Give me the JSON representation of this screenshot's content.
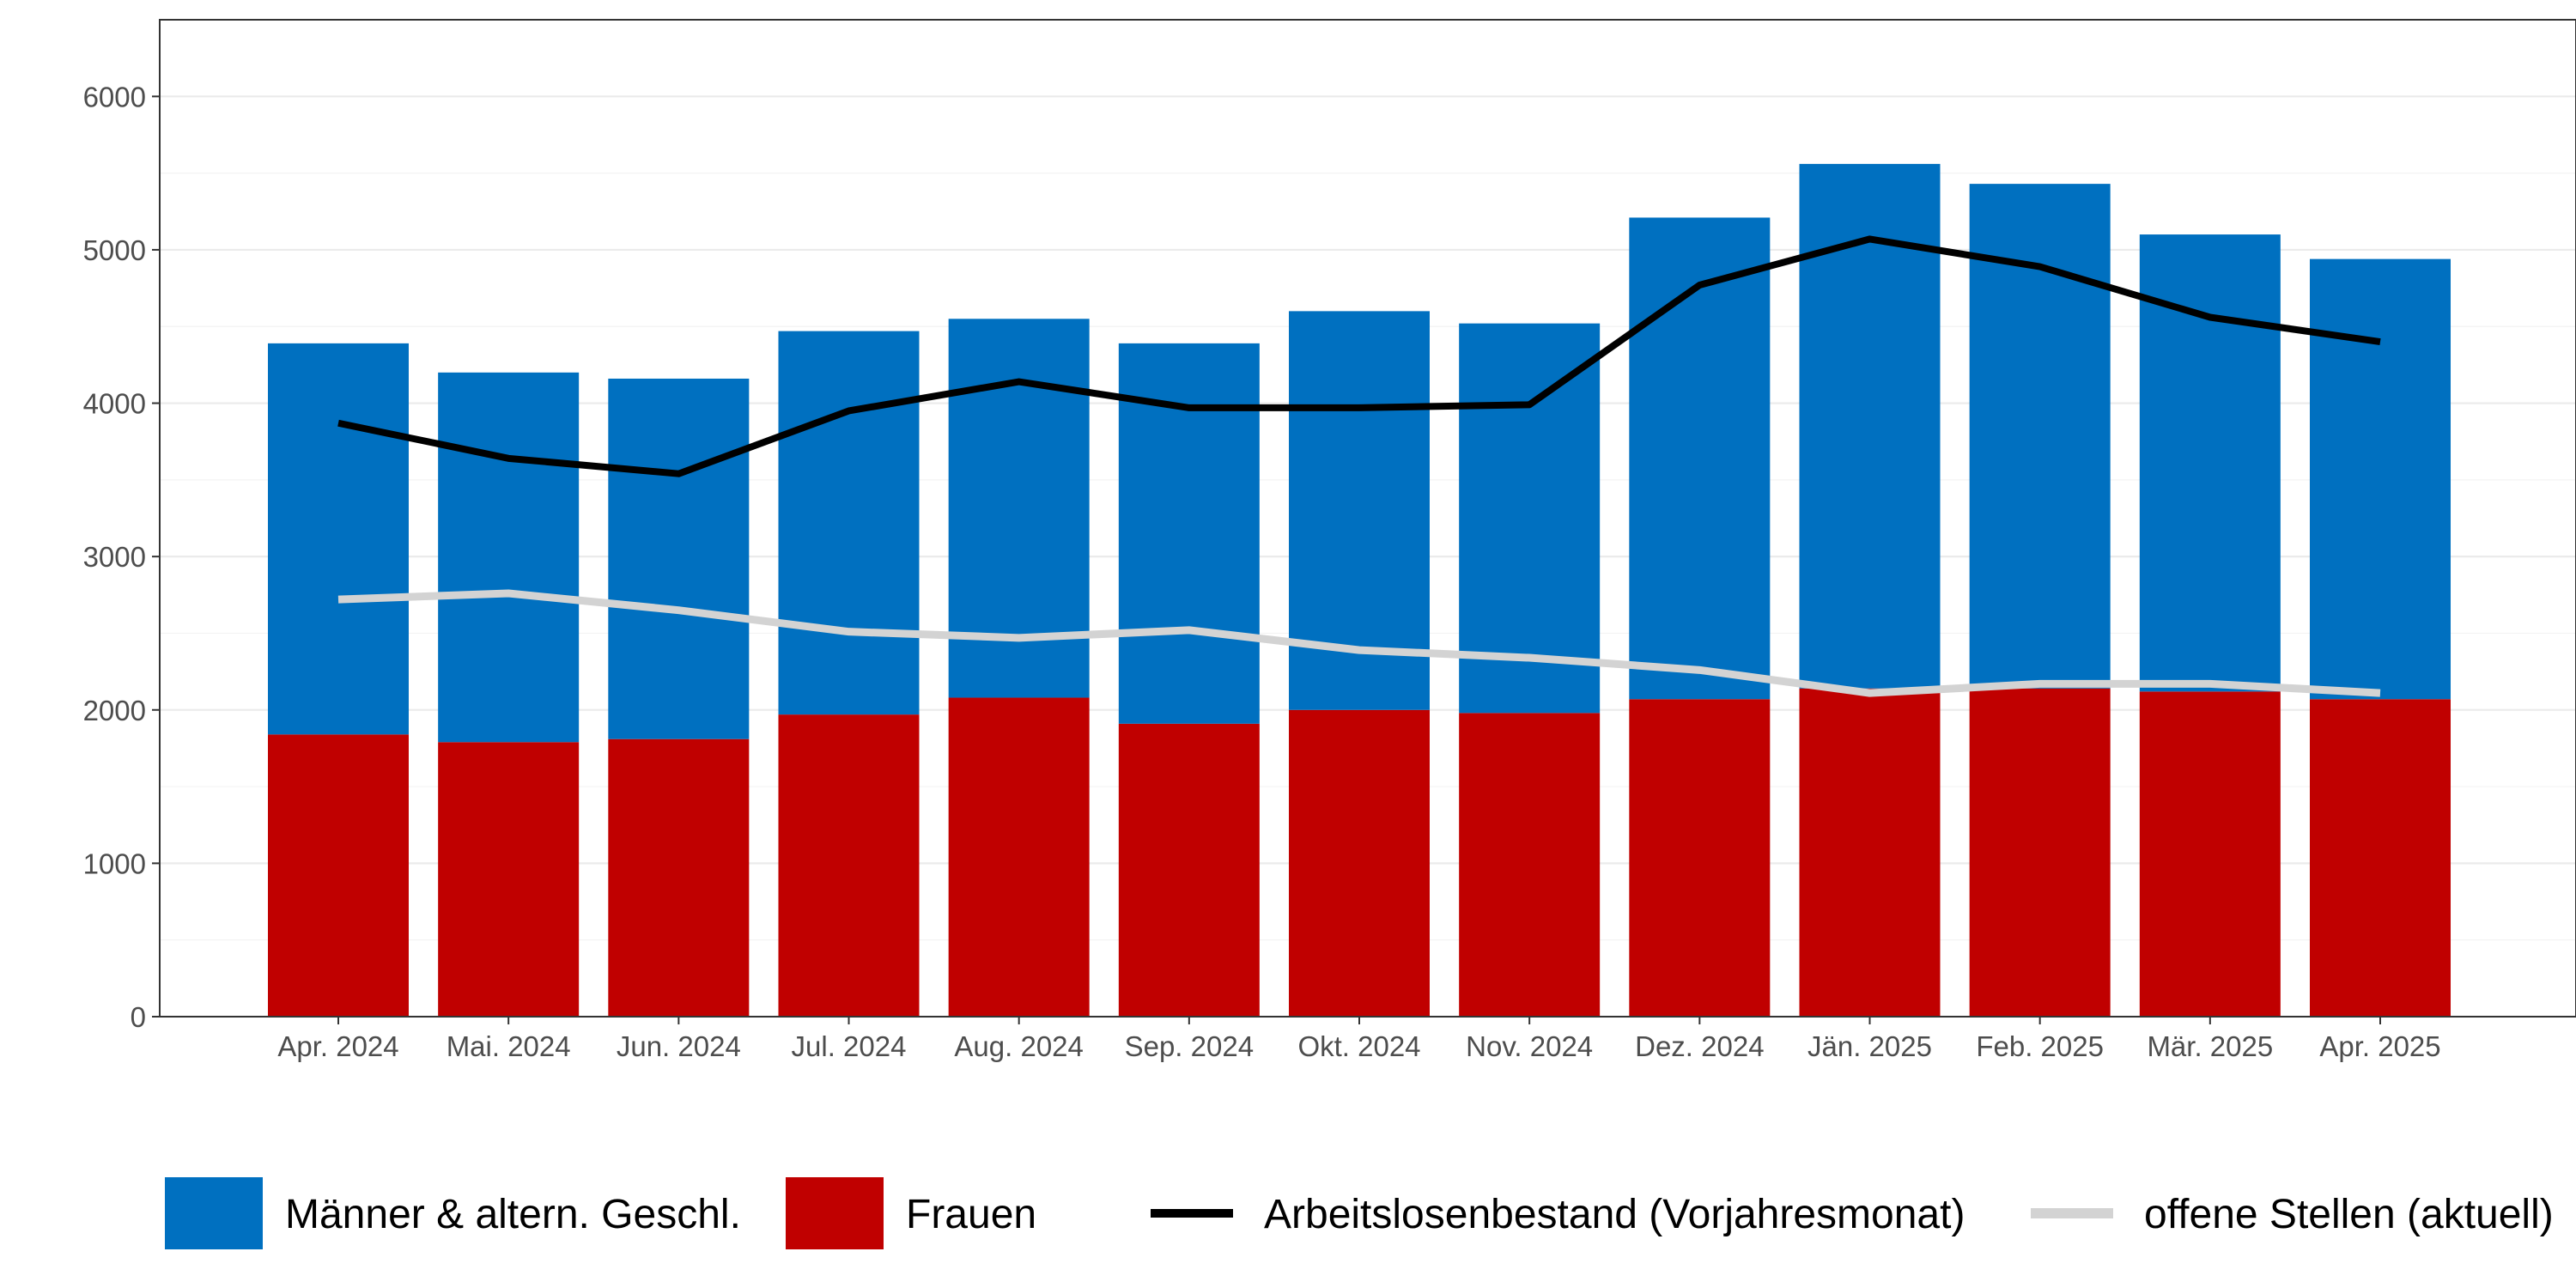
{
  "chart_data": {
    "type": "bar",
    "stacked": true,
    "title": "",
    "xlabel": "",
    "ylabel": "",
    "ylim": [
      0,
      6500
    ],
    "yticks": [
      0,
      1000,
      2000,
      3000,
      4000,
      5000,
      6000
    ],
    "grid": true,
    "legend_position": "bottom",
    "categories": [
      "Apr. 2024",
      "Mai. 2024",
      "Jun. 2024",
      "Jul. 2024",
      "Aug. 2024",
      "Sep. 2024",
      "Okt. 2024",
      "Nov. 2024",
      "Dez. 2024",
      "Jän. 2025",
      "Feb. 2025",
      "Mär. 2025",
      "Apr. 2025"
    ],
    "bar_series": [
      {
        "name": "Frauen",
        "color": "#c00000",
        "values": [
          1840,
          1790,
          1810,
          1970,
          2080,
          1910,
          2000,
          1980,
          2070,
          2140,
          2140,
          2120,
          2070
        ]
      },
      {
        "name": "Männer & altern. Geschl.",
        "color": "#0070c0",
        "values": [
          2550,
          2410,
          2350,
          2500,
          2470,
          2480,
          2600,
          2540,
          3140,
          3420,
          3290,
          2980,
          2870
        ]
      }
    ],
    "line_series": [
      {
        "name": "Arbeitslosenbestand (Vorjahresmonat)",
        "color": "#000000",
        "values": [
          3870,
          3640,
          3540,
          3950,
          4140,
          3970,
          3970,
          3990,
          4770,
          5070,
          4890,
          4560,
          4400
        ]
      },
      {
        "name": "offene Stellen (aktuell)",
        "color": "#d3d3d3",
        "values": [
          2720,
          2760,
          2650,
          2510,
          2470,
          2520,
          2390,
          2340,
          2260,
          2110,
          2170,
          2170,
          2110
        ]
      }
    ],
    "legend": [
      {
        "label": "Männer & altern. Geschl.",
        "kind": "box",
        "color": "#0070c0"
      },
      {
        "label": "Frauen",
        "kind": "box",
        "color": "#c00000"
      },
      {
        "label": "Arbeitslosenbestand (Vorjahresmonat)",
        "kind": "line",
        "color": "#000000"
      },
      {
        "label": "offene Stellen (aktuell)",
        "kind": "line",
        "color": "#d3d3d3"
      }
    ]
  }
}
